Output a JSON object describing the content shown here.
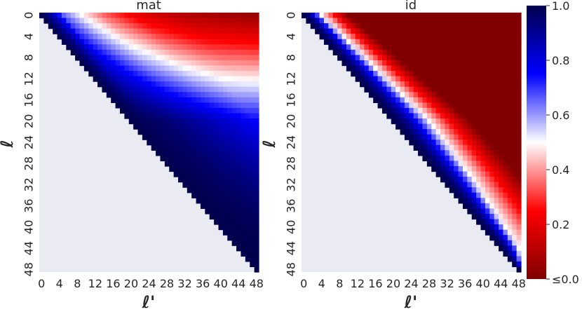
{
  "chart_data": [
    {
      "type": "heatmap",
      "title": "mat",
      "xlabel": "ℓ'",
      "ylabel": "ℓ",
      "n": 49,
      "x_ticks": [
        "0",
        "4",
        "8",
        "12",
        "16",
        "20",
        "24",
        "28",
        "32",
        "36",
        "40",
        "44",
        "48"
      ],
      "y_ticks": [
        "0",
        "4",
        "8",
        "12",
        "16",
        "20",
        "24",
        "28",
        "32",
        "36",
        "40",
        "44",
        "48"
      ],
      "mask": "cells with column < row are empty (light gray)",
      "profile": {
        "description": "approximate value at cell (row, col) = interpolation along normalized distance (col-row); at the 50% (white) level the boundary falls at col ≈ 9 for row 0 and col ≈ 48 for row 19",
        "row0_values_by_col": [
          [
            0,
            1.0
          ],
          [
            2,
            0.9
          ],
          [
            5,
            0.65
          ],
          [
            9,
            0.5
          ],
          [
            14,
            0.35
          ],
          [
            22,
            0.2
          ],
          [
            32,
            0.1
          ],
          [
            48,
            0.05
          ]
        ],
        "row20_values_by_col": [
          [
            20,
            1.0
          ],
          [
            28,
            0.95
          ],
          [
            38,
            0.85
          ],
          [
            48,
            0.75
          ]
        ],
        "row48_values_by_col": [
          [
            48,
            1.0
          ]
        ]
      }
    },
    {
      "type": "heatmap",
      "title": "id",
      "xlabel": "ℓ'",
      "ylabel": "ℓ",
      "n": 49,
      "x_ticks": [
        "0",
        "4",
        "8",
        "12",
        "16",
        "20",
        "24",
        "28",
        "32",
        "36",
        "40",
        "44",
        "48"
      ],
      "y_ticks": [
        "0",
        "4",
        "8",
        "12",
        "16",
        "20",
        "24",
        "28",
        "32",
        "36",
        "40",
        "44",
        "48"
      ],
      "mask": "cells with column < row are empty (light gray)",
      "profile": {
        "description": "blue near the diagonal, narrow white band, then dark red (≤0) far from the diagonal; band widens as the row increases",
        "white_band_offset_by_row": [
          [
            0,
            4
          ],
          [
            10,
            6
          ],
          [
            20,
            8
          ],
          [
            30,
            7
          ],
          [
            40,
            5
          ],
          [
            44,
            4
          ],
          [
            48,
            1
          ]
        ],
        "red_fade_width_by_row": [
          [
            0,
            6
          ],
          [
            20,
            9
          ],
          [
            40,
            12
          ]
        ]
      }
    }
  ],
  "colorbar": {
    "ticks": [
      "1.0",
      "0.8",
      "0.6",
      "0.4",
      "0.2",
      "≤0.0"
    ],
    "tick_values": [
      1.0,
      0.8,
      0.6,
      0.4,
      0.2,
      0.0
    ],
    "colormap": "seismic_r",
    "stops": [
      {
        "v": 0.0,
        "color": "#800000"
      },
      {
        "v": 0.25,
        "color": "#ff0000"
      },
      {
        "v": 0.5,
        "color": "#ffffff"
      },
      {
        "v": 0.75,
        "color": "#0000ff"
      },
      {
        "v": 1.0,
        "color": "#00004d"
      }
    ]
  },
  "colors": {
    "mask": "#eaeaf2",
    "text": "#262626"
  }
}
